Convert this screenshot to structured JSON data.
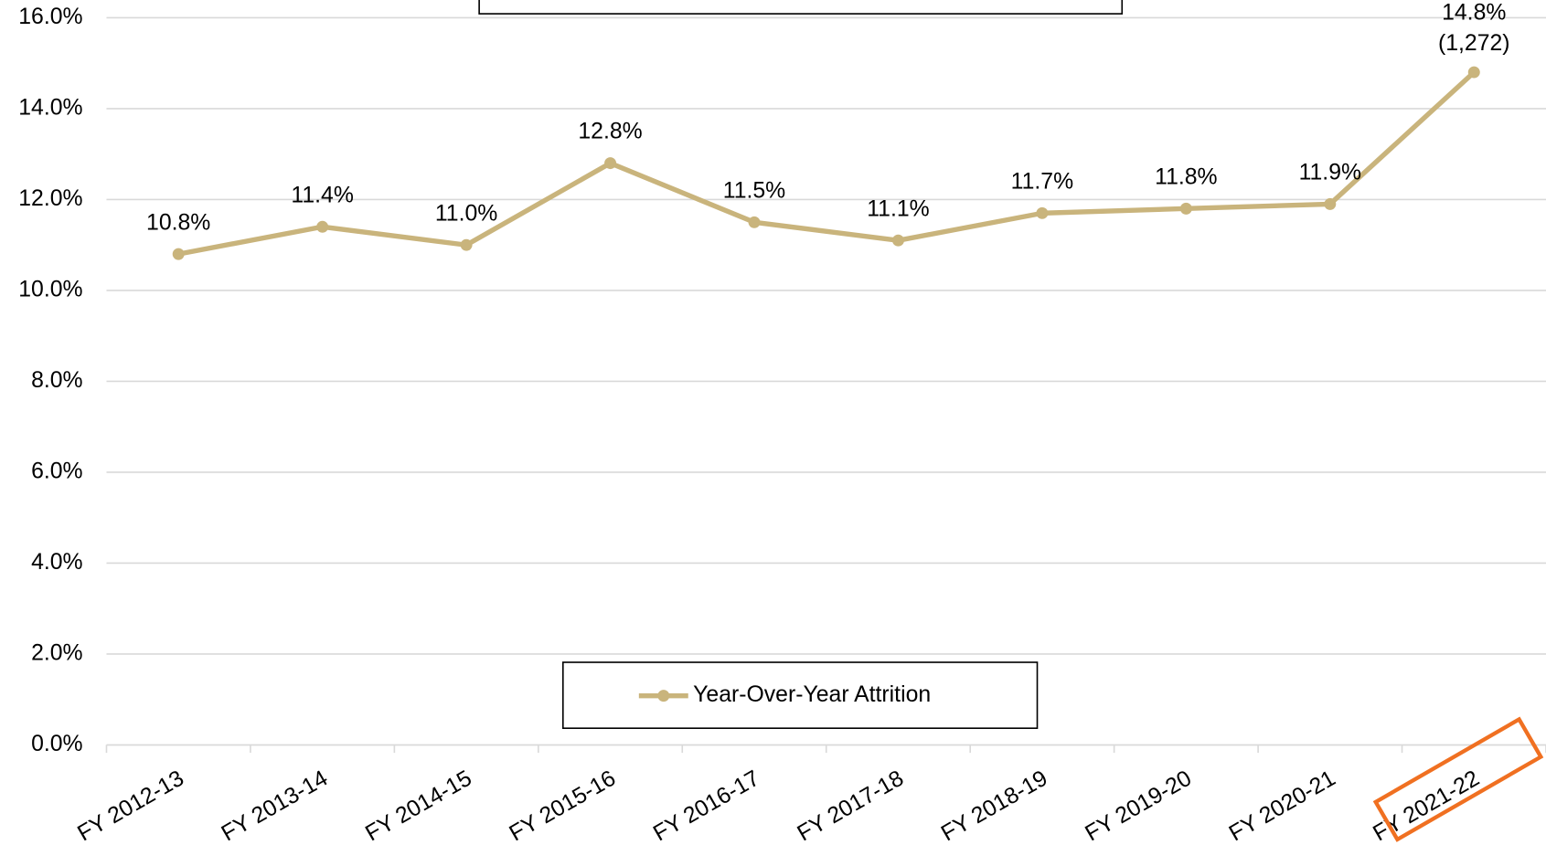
{
  "chart_data": {
    "type": "line",
    "categories": [
      "FY 2012-13",
      "FY 2013-14",
      "FY 2014-15",
      "FY 2015-16",
      "FY 2016-17",
      "FY 2017-18",
      "FY 2018-19",
      "FY 2019-20",
      "FY 2020-21",
      "FY 2021-22"
    ],
    "series": [
      {
        "name": "Year-Over-Year Attrition",
        "color": "#c9b47c",
        "values": [
          10.8,
          11.4,
          11.0,
          12.8,
          11.5,
          11.1,
          11.7,
          11.8,
          11.9,
          14.8
        ],
        "value_labels": [
          "10.8%",
          "11.4%",
          "11.0%",
          "12.8%",
          "11.5%",
          "11.1%",
          "11.7%",
          "11.8%",
          "11.9%",
          "14.8%"
        ]
      }
    ],
    "annotations": [
      "(1,272)"
    ],
    "ylim": [
      0,
      16
    ],
    "yticks": [
      {
        "value": 0,
        "label": "0.0%"
      },
      {
        "value": 2,
        "label": "2.0%"
      },
      {
        "value": 4,
        "label": "4.0%"
      },
      {
        "value": 6,
        "label": "6.0%"
      },
      {
        "value": 8,
        "label": "8.0%"
      },
      {
        "value": 10,
        "label": "10.0%"
      },
      {
        "value": 12,
        "label": "12.0%"
      },
      {
        "value": 14,
        "label": "14.0%"
      },
      {
        "value": 16,
        "label": "16.0%"
      }
    ],
    "grid": true,
    "legend": "bottom"
  }
}
